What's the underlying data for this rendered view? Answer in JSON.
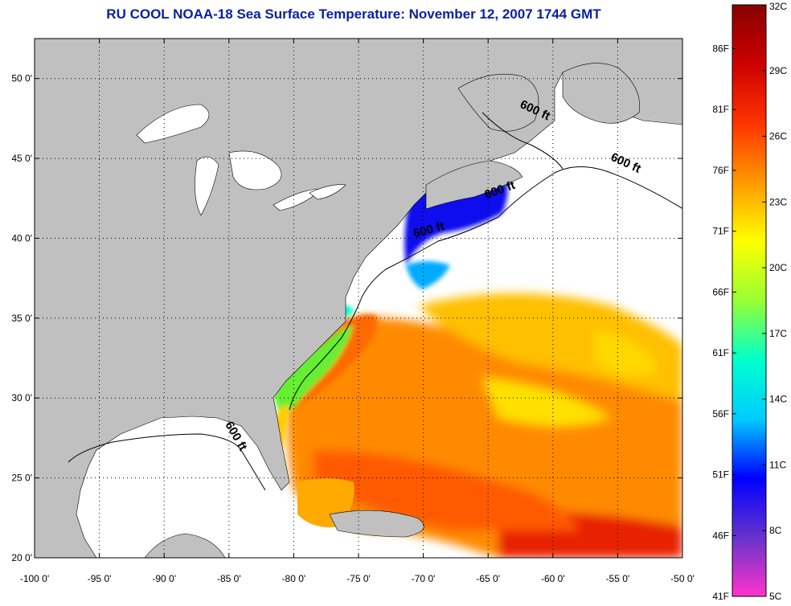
{
  "title": "RU COOL  NOAA-18  Sea Surface Temperature:  November 12, 2007 1744 GMT",
  "map": {
    "lon_range": [
      -100,
      -50
    ],
    "lat_range": [
      20,
      52.5
    ],
    "x_ticks": [
      {
        "value": -100,
        "label": "-100 0'"
      },
      {
        "value": -95,
        "label": "-95 0'"
      },
      {
        "value": -90,
        "label": "-90 0'"
      },
      {
        "value": -85,
        "label": "-85 0'"
      },
      {
        "value": -80,
        "label": "-80 0'"
      },
      {
        "value": -75,
        "label": "-75 0'"
      },
      {
        "value": -70,
        "label": "-70 0'"
      },
      {
        "value": -65,
        "label": "-65 0'"
      },
      {
        "value": -60,
        "label": "-60 0'"
      },
      {
        "value": -55,
        "label": "-55 0'"
      },
      {
        "value": -50,
        "label": "-50 0'"
      }
    ],
    "y_ticks": [
      {
        "value": 20,
        "label": "20 0'"
      },
      {
        "value": 25,
        "label": "25 0'"
      },
      {
        "value": 30,
        "label": "30 0'"
      },
      {
        "value": 35,
        "label": "35 0'"
      },
      {
        "value": 40,
        "label": "40 0'"
      },
      {
        "value": 45,
        "label": "45 0'"
      },
      {
        "value": 50,
        "label": "50 0'"
      }
    ],
    "grid": true,
    "land_color": "#c0c0c0",
    "no_data_color": "#ffffff",
    "contour_labels": [
      {
        "text": "600 ft",
        "lon": -61.5,
        "lat": 47.8,
        "rotate": 25
      },
      {
        "text": "600 ft",
        "lon": -54.5,
        "lat": 44.5,
        "rotate": 25
      },
      {
        "text": "600 ft",
        "lon": -64,
        "lat": 42.8,
        "rotate": -20
      },
      {
        "text": "600 ft",
        "lon": -69.5,
        "lat": 40.3,
        "rotate": -15
      },
      {
        "text": "600 ft",
        "lon": -84.7,
        "lat": 27.5,
        "rotate": 60
      }
    ]
  },
  "colorbar": {
    "ticks_celsius": [
      {
        "value": 32,
        "label": "32C"
      },
      {
        "value": 29,
        "label": "29C"
      },
      {
        "value": 26,
        "label": "26C"
      },
      {
        "value": 23,
        "label": "23C"
      },
      {
        "value": 20,
        "label": "20C"
      },
      {
        "value": 17,
        "label": "17C"
      },
      {
        "value": 14,
        "label": "14C"
      },
      {
        "value": 11,
        "label": "11C"
      },
      {
        "value": 8,
        "label": "8C"
      },
      {
        "value": 5,
        "label": "5C"
      }
    ],
    "ticks_fahrenheit": [
      {
        "value": 86,
        "label": "86F"
      },
      {
        "value": 81,
        "label": "81F"
      },
      {
        "value": 76,
        "label": "76F"
      },
      {
        "value": 71,
        "label": "71F"
      },
      {
        "value": 66,
        "label": "66F"
      },
      {
        "value": 61,
        "label": "61F"
      },
      {
        "value": 56,
        "label": "56F"
      },
      {
        "value": 51,
        "label": "51F"
      },
      {
        "value": 46,
        "label": "46F"
      },
      {
        "value": 41,
        "label": "41F"
      }
    ],
    "range_celsius": [
      5,
      32
    ],
    "colors": [
      "#ff33cc",
      "#6633cc",
      "#0000ff",
      "#00ccff",
      "#00ffcc",
      "#99ff33",
      "#ffff00",
      "#ff9900",
      "#ff3300",
      "#cc0000",
      "#880000"
    ]
  }
}
